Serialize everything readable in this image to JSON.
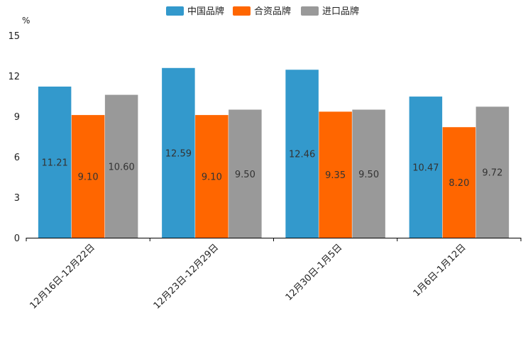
{
  "chart_data": {
    "type": "bar",
    "title": "",
    "unit": "%",
    "xlabel": "",
    "ylabel": "%",
    "ylim": [
      0,
      15
    ],
    "yticks": [
      0,
      3,
      6,
      9,
      12,
      15
    ],
    "categories": [
      "12月16日-12月22日",
      "12月23日-12月29日",
      "12月30日-1月5日",
      "1月6日-1月12日"
    ],
    "series": [
      {
        "name": "中国品牌",
        "color": "#3399cc",
        "values": [
          11.21,
          12.59,
          12.46,
          10.47
        ],
        "labels": [
          "11.21",
          "12.59",
          "12.46",
          "10.47"
        ]
      },
      {
        "name": "合资品牌",
        "color": "#ff6600",
        "values": [
          9.1,
          9.1,
          9.35,
          8.2
        ],
        "labels": [
          "9.10",
          "9.10",
          "9.35",
          "8.20"
        ]
      },
      {
        "name": "进口品牌",
        "color": "#999999",
        "values": [
          10.6,
          9.5,
          9.5,
          9.72
        ],
        "labels": [
          "10.60",
          "9.50",
          "9.50",
          "9.72"
        ]
      }
    ],
    "legend_position": "top-center",
    "grid": false
  }
}
